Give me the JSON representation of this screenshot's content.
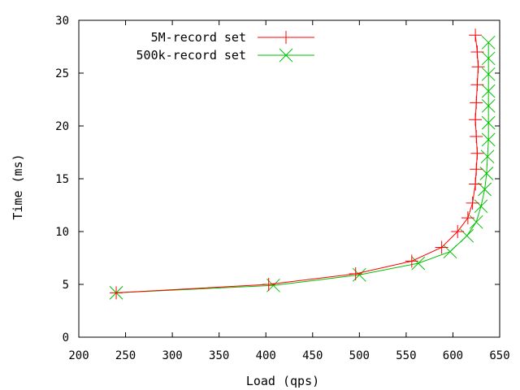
{
  "chart_data": {
    "type": "line",
    "xlabel": "Load (qps)",
    "ylabel": "Time (ms)",
    "xlim": [
      200,
      650
    ],
    "ylim": [
      0,
      30
    ],
    "xticks": [
      200,
      250,
      300,
      350,
      400,
      450,
      500,
      550,
      600,
      650
    ],
    "yticks": [
      0,
      5,
      10,
      15,
      20,
      25,
      30
    ],
    "grid": false,
    "legend_position": "top-right",
    "series": [
      {
        "name": "5M-record set",
        "color": "#ff0000",
        "marker": "plus",
        "points": [
          [
            240,
            4.2
          ],
          [
            403,
            5.0
          ],
          [
            496,
            6.0
          ],
          [
            556,
            7.2
          ],
          [
            588,
            8.5
          ],
          [
            605,
            10.0
          ],
          [
            616,
            11.3
          ],
          [
            621,
            12.7
          ],
          [
            624,
            14.5
          ],
          [
            625,
            15.9
          ],
          [
            626,
            17.4
          ],
          [
            625,
            19.0
          ],
          [
            624,
            20.6
          ],
          [
            625,
            22.2
          ],
          [
            626,
            23.9
          ],
          [
            627,
            25.6
          ],
          [
            626,
            27.0
          ],
          [
            624,
            28.6
          ]
        ]
      },
      {
        "name": "500k-record set",
        "color": "#00c000",
        "marker": "cross",
        "points": [
          [
            240,
            4.2
          ],
          [
            408,
            4.9
          ],
          [
            500,
            5.9
          ],
          [
            563,
            7.0
          ],
          [
            597,
            8.1
          ],
          [
            615,
            9.6
          ],
          [
            625,
            10.9
          ],
          [
            630,
            12.4
          ],
          [
            634,
            14.0
          ],
          [
            636,
            15.5
          ],
          [
            637,
            17.1
          ],
          [
            638,
            18.7
          ],
          [
            638,
            20.3
          ],
          [
            638,
            21.9
          ],
          [
            638,
            23.3
          ],
          [
            638,
            24.9
          ],
          [
            638,
            26.4
          ],
          [
            638,
            27.9
          ]
        ]
      }
    ]
  }
}
